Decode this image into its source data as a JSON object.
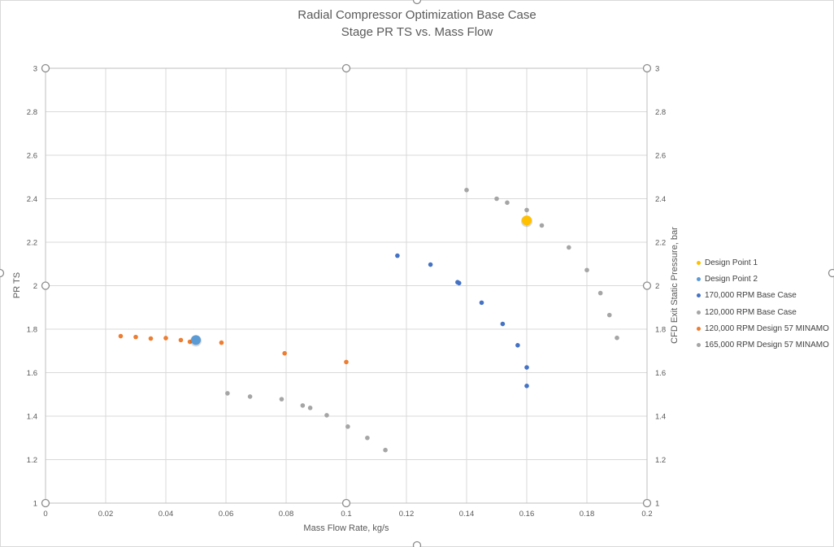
{
  "chart_data": {
    "type": "scatter",
    "title": "Radial Compressor Optimization Base Case",
    "subtitle": "Stage PR TS vs. Mass Flow",
    "xlabel": "Mass Flow Rate, kg/s",
    "ylabel": "PR TS",
    "y2label": "CFD Exit Static Pressure, bar",
    "xlim": [
      0,
      0.2
    ],
    "ylim": [
      1,
      3
    ],
    "y2lim": [
      1,
      3
    ],
    "x_ticks": [
      "0",
      "0.02",
      "0.04",
      "0.06",
      "0.08",
      "0.1",
      "0.12",
      "0.14",
      "0.16",
      "0.18",
      "0.2"
    ],
    "y_ticks": [
      "1",
      "1.2",
      "1.4",
      "1.6",
      "1.8",
      "2",
      "2.2",
      "2.4",
      "2.6",
      "2.8",
      "3"
    ],
    "y2_ticks": [
      "1",
      "1.2",
      "1.4",
      "1.6",
      "1.8",
      "2",
      "2.2",
      "2.4",
      "2.6",
      "2.8",
      "3"
    ],
    "grid": true,
    "legend_position": "right",
    "series": [
      {
        "name": "Design Point 1",
        "color": "#ffc000",
        "size": "large",
        "points": [
          [
            0.16,
            2.3
          ]
        ]
      },
      {
        "name": "Design Point 2",
        "color": "#5b9bd5",
        "size": "large",
        "points": [
          [
            0.05,
            1.75
          ]
        ]
      },
      {
        "name": "170,000 RPM Base Case",
        "color": "#4472c4",
        "size": "small",
        "points": [
          [
            0.117,
            2.138
          ],
          [
            0.128,
            2.097
          ],
          [
            0.137,
            2.016
          ],
          [
            0.1375,
            2.012
          ],
          [
            0.145,
            1.922
          ],
          [
            0.152,
            1.824
          ],
          [
            0.157,
            1.726
          ],
          [
            0.16,
            1.624
          ],
          [
            0.16,
            1.539
          ]
        ]
      },
      {
        "name": "120,000 RPM Base Case",
        "color": "#a5a5a5",
        "size": "small",
        "points": [
          [
            0.0605,
            1.505
          ],
          [
            0.068,
            1.49
          ],
          [
            0.0785,
            1.478
          ],
          [
            0.0855,
            1.449
          ],
          [
            0.088,
            1.438
          ],
          [
            0.0935,
            1.404
          ],
          [
            0.1005,
            1.352
          ],
          [
            0.107,
            1.3
          ],
          [
            0.113,
            1.244
          ]
        ]
      },
      {
        "name": "120,000 RPM Design 57 MINAMO",
        "color": "#ed7d31",
        "size": "small",
        "points": [
          [
            0.025,
            1.768
          ],
          [
            0.03,
            1.764
          ],
          [
            0.035,
            1.757
          ],
          [
            0.04,
            1.759
          ],
          [
            0.045,
            1.75
          ],
          [
            0.048,
            1.742
          ],
          [
            0.05,
            1.744
          ],
          [
            0.0585,
            1.738
          ],
          [
            0.0795,
            1.689
          ],
          [
            0.1,
            1.649
          ]
        ]
      },
      {
        "name": "165,000 RPM Design 57 MINAMO",
        "color": "#a5a5a5",
        "size": "small",
        "points": [
          [
            0.14,
            2.44
          ],
          [
            0.15,
            2.4
          ],
          [
            0.1535,
            2.382
          ],
          [
            0.16,
            2.348
          ],
          [
            0.165,
            2.277
          ],
          [
            0.174,
            2.176
          ],
          [
            0.18,
            2.072
          ],
          [
            0.1845,
            1.966
          ],
          [
            0.1875,
            1.865
          ],
          [
            0.19,
            1.76
          ]
        ]
      }
    ]
  }
}
